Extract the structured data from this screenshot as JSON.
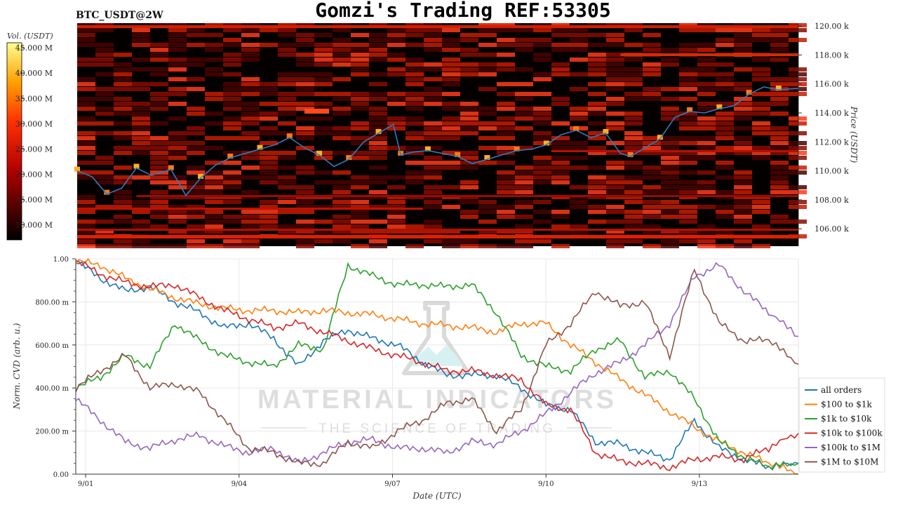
{
  "header": {
    "title": "Gomzi's Trading REF:53305",
    "pair": "BTC_USDT@2W"
  },
  "watermark": {
    "line1": "MATERIAL INDICATORS",
    "line2": "THE SCIENCE OF TRADING"
  },
  "chart_data": [
    {
      "type": "heatmap",
      "name": "orderbook-heatmap",
      "ylabel": "Price (USDT)",
      "colorbar_label": "Vol. (USDT)",
      "colorbar_ticks": [
        "45.000 M",
        "40.000 M",
        "35.000 M",
        "30.000 M",
        "25.000 M",
        "20.000 M",
        "15.000 M",
        "10.000 M"
      ],
      "colorbar_values": [
        45,
        40,
        35,
        30,
        25,
        20,
        15,
        10
      ],
      "colorbar_range": [
        7,
        46
      ],
      "y_ticks": [
        "120.00 k",
        "118.00 k",
        "116.00 k",
        "114.00 k",
        "112.00 k",
        "110.00 k",
        "108.00 k",
        "106.00 k"
      ],
      "y_tick_values": [
        120,
        118,
        116,
        114,
        112,
        110,
        108,
        106
      ],
      "ylim": [
        104.8,
        120.2
      ],
      "x_range_days": [
        0,
        14.6
      ],
      "price_series_color": "#2f7bbf",
      "price": [
        [
          0,
          110.0
        ],
        [
          0.3,
          109.6
        ],
        [
          0.6,
          108.4
        ],
        [
          0.9,
          108.8
        ],
        [
          1.2,
          110.2
        ],
        [
          1.5,
          109.7
        ],
        [
          1.9,
          110.1
        ],
        [
          2.2,
          108.3
        ],
        [
          2.5,
          109.5
        ],
        [
          2.8,
          110.4
        ],
        [
          3.1,
          110.9
        ],
        [
          3.4,
          111.2
        ],
        [
          3.7,
          111.5
        ],
        [
          4.0,
          111.8
        ],
        [
          4.3,
          112.3
        ],
        [
          4.6,
          111.6
        ],
        [
          4.9,
          111.1
        ],
        [
          5.2,
          110.3
        ],
        [
          5.5,
          110.8
        ],
        [
          5.8,
          112.0
        ],
        [
          6.1,
          112.6
        ],
        [
          6.4,
          113.2
        ],
        [
          6.55,
          111.1
        ],
        [
          6.8,
          111.3
        ],
        [
          7.1,
          111.4
        ],
        [
          7.4,
          111.2
        ],
        [
          7.7,
          111.0
        ],
        [
          8.0,
          110.5
        ],
        [
          8.3,
          110.8
        ],
        [
          8.6,
          111.1
        ],
        [
          8.9,
          111.4
        ],
        [
          9.2,
          111.5
        ],
        [
          9.5,
          111.8
        ],
        [
          9.8,
          112.5
        ],
        [
          10.1,
          112.8
        ],
        [
          10.4,
          112.3
        ],
        [
          10.7,
          112.6
        ],
        [
          11.0,
          111.2
        ],
        [
          11.2,
          111.0
        ],
        [
          11.5,
          111.6
        ],
        [
          11.8,
          112.2
        ],
        [
          12.1,
          113.7
        ],
        [
          12.4,
          114.1
        ],
        [
          12.7,
          114.0
        ],
        [
          13.0,
          114.3
        ],
        [
          13.3,
          114.5
        ],
        [
          13.6,
          115.3
        ],
        [
          13.9,
          115.8
        ],
        [
          14.2,
          115.6
        ],
        [
          14.6,
          115.7
        ]
      ]
    },
    {
      "type": "line",
      "name": "normalized-cvd",
      "xlabel": "Date (UTC)",
      "ylabel": "Norm. CVD (arb. u.)",
      "x_ticks": [
        "9/01",
        "9/04",
        "9/07",
        "9/10",
        "9/13"
      ],
      "x_tick_values": [
        0.2,
        3.3,
        6.4,
        9.5,
        12.6
      ],
      "xlim": [
        0,
        14.6
      ],
      "y_ticks": [
        "1.00",
        "800.00 m",
        "600.00 m",
        "400.00 m",
        "200.00 m",
        "0.00"
      ],
      "y_tick_values": [
        1.0,
        0.8,
        0.6,
        0.4,
        0.2,
        0.0
      ],
      "ylim": [
        0,
        1.0
      ],
      "grid": true,
      "legend_position": "bottom-right",
      "x": [
        0,
        0.5,
        1,
        1.5,
        2,
        2.5,
        3,
        3.5,
        4,
        4.5,
        5,
        5.5,
        6,
        6.5,
        7,
        7.5,
        8,
        8.5,
        9,
        9.5,
        10,
        10.5,
        11,
        11.5,
        12,
        12.5,
        13,
        13.5,
        14,
        14.6
      ],
      "series": [
        {
          "name": "all orders",
          "color": "#1f77b4",
          "values": [
            0.99,
            0.91,
            0.85,
            0.87,
            0.8,
            0.75,
            0.68,
            0.7,
            0.63,
            0.5,
            0.62,
            0.67,
            0.63,
            0.6,
            0.52,
            0.46,
            0.46,
            0.46,
            0.4,
            0.32,
            0.3,
            0.15,
            0.14,
            0.1,
            0.07,
            0.25,
            0.12,
            0.07,
            0.03,
            0.05
          ]
        },
        {
          "name": "$100 to $1k",
          "color": "#ff7f0e",
          "values": [
            0.99,
            0.97,
            0.91,
            0.86,
            0.82,
            0.79,
            0.77,
            0.76,
            0.76,
            0.75,
            0.76,
            0.75,
            0.74,
            0.72,
            0.7,
            0.69,
            0.68,
            0.66,
            0.7,
            0.7,
            0.6,
            0.52,
            0.44,
            0.37,
            0.29,
            0.22,
            0.15,
            0.1,
            0.05,
            0.0
          ]
        },
        {
          "name": "$1k to $10k",
          "color": "#2ca02c",
          "values": [
            0.4,
            0.45,
            0.55,
            0.5,
            0.7,
            0.62,
            0.55,
            0.52,
            0.5,
            0.6,
            0.58,
            0.97,
            0.92,
            0.88,
            0.88,
            0.87,
            0.88,
            0.75,
            0.55,
            0.5,
            0.48,
            0.58,
            0.62,
            0.45,
            0.48,
            0.35,
            0.15,
            0.08,
            0.03,
            0.05
          ]
        },
        {
          "name": "$10k to $100k",
          "color": "#d62728",
          "values": [
            0.99,
            0.93,
            0.89,
            0.87,
            0.88,
            0.82,
            0.76,
            0.72,
            0.68,
            0.7,
            0.66,
            0.62,
            0.58,
            0.55,
            0.52,
            0.48,
            0.48,
            0.46,
            0.44,
            0.32,
            0.3,
            0.1,
            0.06,
            0.05,
            0.03,
            0.07,
            0.08,
            0.07,
            0.12,
            0.19
          ]
        },
        {
          "name": "$100k to $1M",
          "color": "#9467bd",
          "values": [
            0.35,
            0.25,
            0.15,
            0.12,
            0.16,
            0.18,
            0.13,
            0.1,
            0.12,
            0.05,
            0.1,
            0.15,
            0.16,
            0.12,
            0.12,
            0.1,
            0.15,
            0.14,
            0.2,
            0.28,
            0.38,
            0.47,
            0.52,
            0.6,
            0.7,
            0.92,
            0.97,
            0.85,
            0.75,
            0.64
          ]
        },
        {
          "name": "$1M to $10M",
          "color": "#8c564b",
          "values": [
            0.4,
            0.48,
            0.55,
            0.4,
            0.42,
            0.38,
            0.25,
            0.12,
            0.1,
            0.05,
            0.05,
            0.15,
            0.12,
            0.2,
            0.25,
            0.33,
            0.35,
            0.2,
            0.3,
            0.6,
            0.7,
            0.85,
            0.78,
            0.8,
            0.55,
            0.95,
            0.7,
            0.62,
            0.62,
            0.51
          ]
        }
      ]
    }
  ]
}
